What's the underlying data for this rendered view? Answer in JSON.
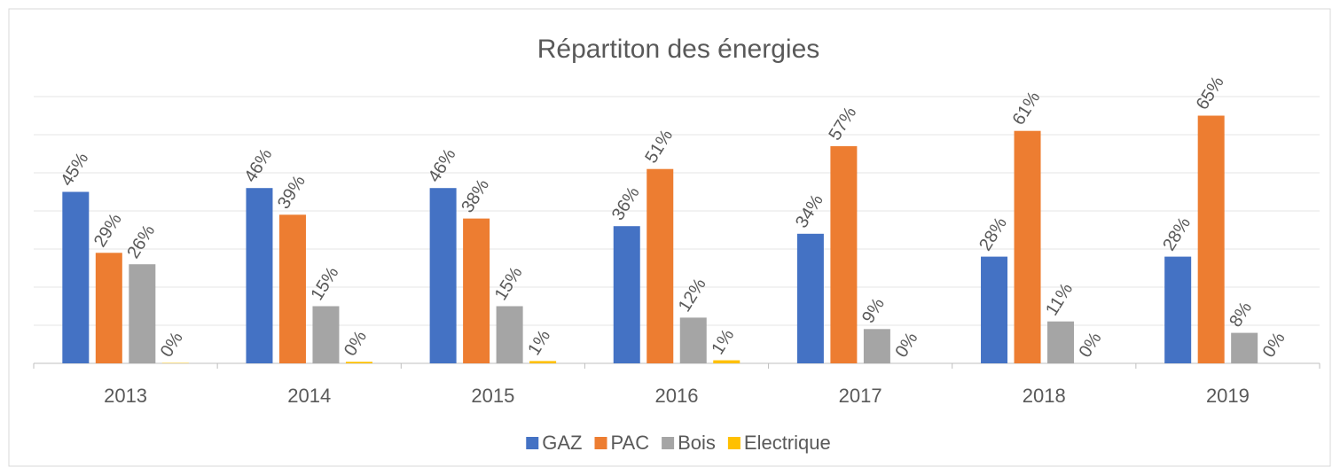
{
  "chart_data": {
    "type": "bar",
    "title": "Répartiton des énergies",
    "categories": [
      "2013",
      "2014",
      "2015",
      "2016",
      "2017",
      "2018",
      "2019"
    ],
    "series": [
      {
        "name": "GAZ",
        "color": "#4472c4",
        "values": [
          45,
          46,
          46,
          36,
          34,
          28,
          28
        ],
        "value_labels": [
          "45%",
          "46%",
          "46%",
          "36%",
          "34%",
          "28%",
          "28%"
        ]
      },
      {
        "name": "PAC",
        "color": "#ed7d31",
        "values": [
          29,
          39,
          38,
          51,
          57,
          61,
          65
        ],
        "value_labels": [
          "29%",
          "39%",
          "38%",
          "51%",
          "57%",
          "61%",
          "65%"
        ]
      },
      {
        "name": "Bois",
        "color": "#a5a5a5",
        "values": [
          26,
          15,
          15,
          12,
          9,
          11,
          8
        ],
        "value_labels": [
          "26%",
          "15%",
          "15%",
          "12%",
          "9%",
          "11%",
          "8%"
        ]
      },
      {
        "name": "Electrique",
        "color": "#ffc000",
        "values": [
          0.1,
          0.4,
          0.6,
          0.8,
          0,
          0,
          0
        ],
        "value_labels": [
          "0%",
          "0%",
          "1%",
          "1%",
          "0%",
          "0%",
          "0%"
        ]
      }
    ],
    "ylim": [
      0,
      70
    ],
    "yticks": [
      0,
      10,
      20,
      30,
      40,
      50,
      60,
      70
    ],
    "grid": true,
    "legend": "bottom"
  }
}
